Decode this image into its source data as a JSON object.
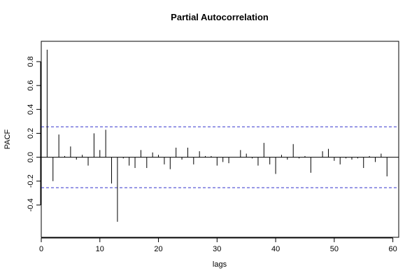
{
  "chart_data": {
    "type": "bar",
    "title": "Partial Autocorrelation",
    "xlabel": "lags",
    "ylabel": "PACF",
    "xlim": [
      0,
      61
    ],
    "ylim": [
      -0.67,
      0.97
    ],
    "x_ticks": [
      0,
      10,
      20,
      30,
      40,
      50,
      60
    ],
    "x_tick_labels": [
      "0",
      "10",
      "20",
      "30",
      "40",
      "50",
      "60"
    ],
    "y_ticks": [
      -0.4,
      -0.2,
      0.0,
      0.2,
      0.4,
      0.6,
      0.8
    ],
    "y_tick_labels": [
      "-0.4",
      "-0.2",
      "0.0",
      "0.2",
      "0.4",
      "0.6",
      "0.8"
    ],
    "confidence_bounds": [
      0.255,
      -0.255
    ],
    "bound_color": "#3333cc",
    "lags": [
      1,
      2,
      3,
      4,
      5,
      6,
      7,
      8,
      9,
      10,
      11,
      12,
      13,
      14,
      15,
      16,
      17,
      18,
      19,
      20,
      21,
      22,
      23,
      24,
      25,
      26,
      27,
      28,
      29,
      30,
      31,
      32,
      33,
      34,
      35,
      36,
      37,
      38,
      39,
      40,
      41,
      42,
      43,
      44,
      45,
      46,
      47,
      48,
      49,
      50,
      51,
      52,
      53,
      54,
      55,
      56,
      57,
      58,
      59
    ],
    "values": [
      0.9,
      -0.2,
      0.19,
      0.01,
      0.09,
      -0.02,
      0.02,
      -0.07,
      0.2,
      0.06,
      0.23,
      -0.22,
      -0.54,
      -0.01,
      -0.07,
      -0.09,
      0.06,
      -0.09,
      0.04,
      0.02,
      -0.06,
      -0.1,
      0.08,
      -0.02,
      0.08,
      -0.06,
      0.05,
      0.01,
      0.01,
      -0.07,
      -0.04,
      -0.05,
      0.0,
      0.06,
      0.03,
      -0.01,
      -0.07,
      0.12,
      -0.06,
      -0.14,
      0.02,
      -0.02,
      0.11,
      -0.01,
      0.01,
      -0.13,
      0.0,
      0.05,
      0.07,
      -0.03,
      -0.06,
      -0.01,
      -0.02,
      -0.01,
      -0.09,
      0.01,
      -0.04,
      0.03,
      -0.16
    ]
  }
}
